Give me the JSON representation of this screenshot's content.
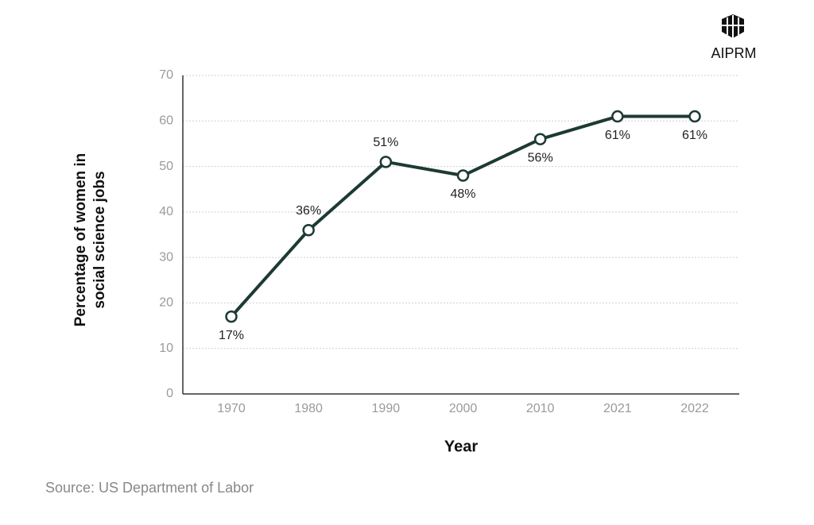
{
  "chart_data": {
    "type": "line",
    "x_label": "Year",
    "y_label": [
      "Percentage of women in",
      "social science jobs"
    ],
    "categories": [
      "1970",
      "1980",
      "1990",
      "2000",
      "2010",
      "2021",
      "2022"
    ],
    "series": [
      {
        "color": "#1d3a34",
        "values": [
          17,
          36,
          51,
          48,
          56,
          61,
          61
        ],
        "value_labels": [
          "17%",
          "36%",
          "51%",
          "48%",
          "56%",
          "61%",
          "61%"
        ]
      }
    ],
    "ylim": [
      0,
      70
    ],
    "yticks": [
      0,
      10,
      20,
      30,
      40,
      50,
      60,
      70
    ],
    "grid": true,
    "source": "Source: US Department of Labor",
    "logo": "AIPRM"
  }
}
